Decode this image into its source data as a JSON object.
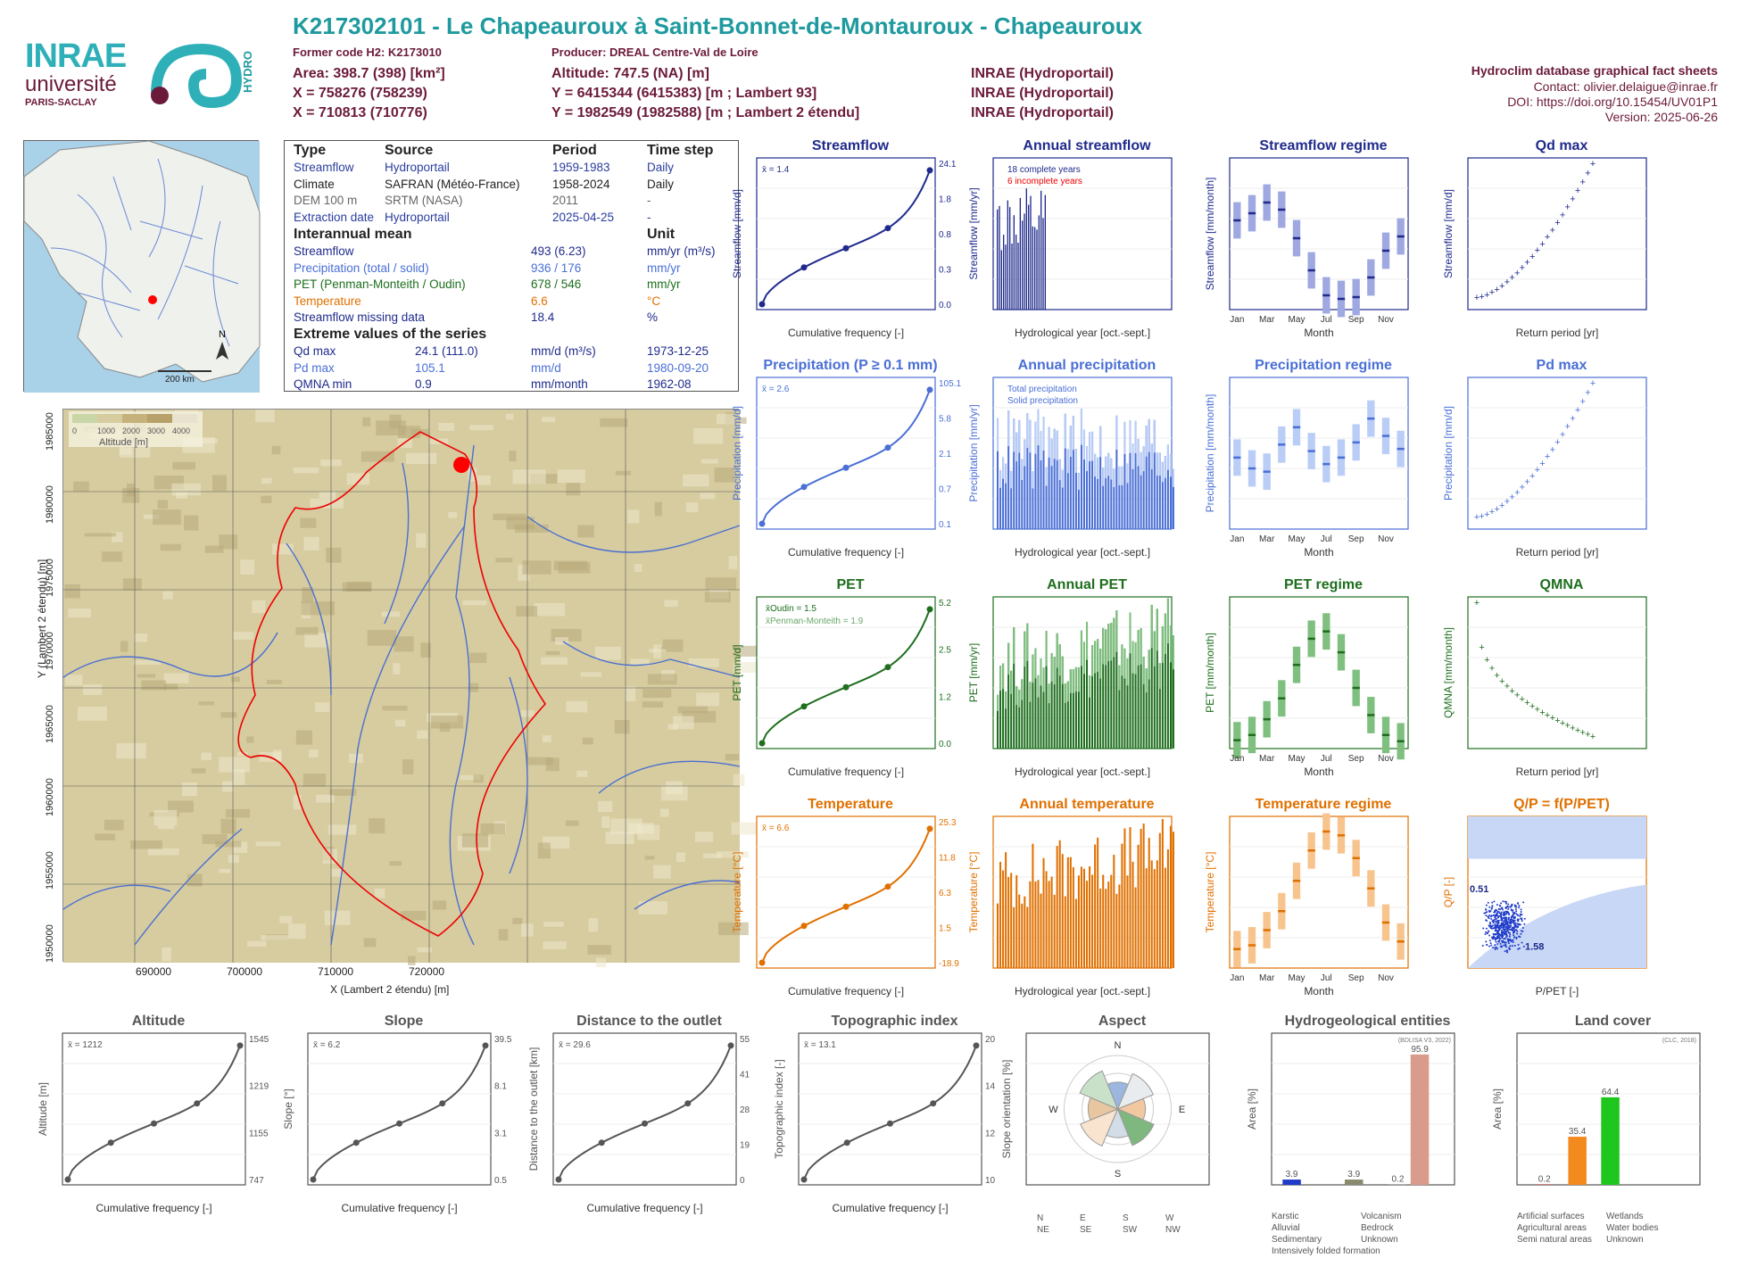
{
  "header": {
    "title": "K217302101 - Le Chapeauroux à Saint-Bonnet-de-Montauroux - Chapeauroux",
    "former_code": "Former code H2: K2173010",
    "producer": "Producer: DREAL Centre-Val de Loire",
    "area": "Area: 398.7 (398) [km²]",
    "altitude": "Altitude: 747.5 (NA) [m]",
    "x93": "X = 758276 (758239)",
    "y93": "Y = 6415344 (6415383) [m ; Lambert 93]",
    "x2": "X = 710813 (710776)",
    "y2": "Y = 1982549 (1982588) [m ; Lambert 2 étendu]",
    "src1": "INRAE (Hydroportail)",
    "src2": "INRAE (Hydroportail)",
    "src3": "INRAE (Hydroportail)",
    "db": "Hydroclim database graphical fact sheets",
    "contact": "Contact: olivier.delaigue@inrae.fr",
    "doi": "DOI: https://doi.org/10.15454/UV01P1",
    "version": "Version: 2025-06-26"
  },
  "logos": {
    "inrae": "INRAE",
    "univ": "université",
    "paris": "PARIS-SACLAY",
    "hydro": "HYDRO"
  },
  "info": {
    "h_type": "Type",
    "h_source": "Source",
    "h_period": "Period",
    "h_step": "Time step",
    "rows": [
      {
        "t": "Streamflow",
        "s": "Hydroportail",
        "p": "1959-1983",
        "ts": "Daily",
        "c": "#2a3d9e"
      },
      {
        "t": "Climate",
        "s": "SAFRAN (Météo-France)",
        "p": "1958-2024",
        "ts": "Daily",
        "c": "#222"
      },
      {
        "t": "DEM 100 m",
        "s": "SRTM (NASA)",
        "p": "2011",
        "ts": "-",
        "c": "#666"
      },
      {
        "t": "Extraction date",
        "s": "Hydroportail",
        "p": "2025-04-25",
        "ts": "-",
        "c": "#2a3d9e"
      }
    ],
    "h_mean": "Interannual mean",
    "h_unit": "Unit",
    "means": [
      {
        "l": "Streamflow",
        "v": "493 (6.23)",
        "u": "mm/yr (m³/s)",
        "c": "#1f2a8c"
      },
      {
        "l": "Precipitation (total / solid)",
        "v": "936 / 176",
        "u": "mm/yr",
        "c": "#4a6fd6"
      },
      {
        "l": "PET (Penman-Monteith / Oudin)",
        "v": "678 / 546",
        "u": "mm/yr",
        "c": "#1e6e1e"
      },
      {
        "l": "Temperature",
        "v": "6.6",
        "u": "°C",
        "c": "#e07000"
      },
      {
        "l": "Streamflow missing data",
        "v": "18.4",
        "u": "%",
        "c": "#1f2a8c"
      }
    ],
    "h_ext": "Extreme values of the series",
    "ext": [
      {
        "l": "Qd max",
        "v": "24.1 (111.0)",
        "u": "mm/d (m³/s)",
        "d": "1973-12-25",
        "c": "#1f2a8c"
      },
      {
        "l": "Pd max",
        "v": "105.1",
        "u": "mm/d",
        "d": "1980-09-20",
        "c": "#4a6fd6"
      },
      {
        "l": "QMNA min",
        "v": "0.9",
        "u": "mm/month",
        "d": "1962-08",
        "c": "#1f2a8c"
      }
    ]
  },
  "map": {
    "north": "N",
    "scale": "200 km"
  },
  "basin": {
    "legend": "Altitude [m]",
    "leg_ticks": [
      "0",
      "1000",
      "2000",
      "3000",
      "4000"
    ],
    "xlabel": "X (Lambert 2 étendu) [m]",
    "ylabel": "Y (Lambert 2 étendu) [m]",
    "xticks": [
      "690000",
      "700000",
      "710000",
      "720000"
    ],
    "yticks": [
      "1985000",
      "1980000",
      "1975000",
      "1970000",
      "1965000",
      "1960000",
      "1955000",
      "1950000"
    ]
  },
  "panels": {
    "streamflow": "Streamflow",
    "annual_streamflow": "Annual streamflow",
    "streamflow_regime": "Streamflow regime",
    "qd_max": "Qd max",
    "precip": "Precipitation (P ≥ 0.1 mm)",
    "annual_precip": "Annual precipitation",
    "precip_regime": "Precipitation regime",
    "pd_max": "Pd max",
    "pet": "PET",
    "annual_pet": "Annual PET",
    "pet_regime": "PET regime",
    "qmna": "QMNA",
    "temp": "Temperature",
    "annual_temp": "Annual temperature",
    "temp_regime": "Temperature regime",
    "qp": "Q/P = f(P/PET)",
    "altitude": "Altitude",
    "slope": "Slope",
    "distance": "Distance to the outlet",
    "topo": "Topographic index",
    "aspect": "Aspect",
    "hydrogeo": "Hydrogeological entities",
    "landcover": "Land cover"
  },
  "chart_data": [
    {
      "type": "line",
      "title": "Streamflow",
      "xlabel": "Cumulative frequency [-]",
      "ylabel": "Streamflow [mm/d]",
      "scale": "log",
      "mean": "x̄ = 1.4",
      "right_ticks": [
        "24.1",
        "1.8",
        "0.8",
        "0.3",
        "0.0"
      ],
      "points": [
        [
          0,
          0.0
        ],
        [
          0.25,
          0.3
        ],
        [
          0.5,
          0.8
        ],
        [
          0.75,
          1.8
        ],
        [
          1,
          24.1
        ]
      ]
    },
    {
      "type": "bar",
      "title": "Annual streamflow",
      "xlabel": "Hydrological year [oct.-sept.]",
      "ylabel": "Streamflow [mm/yr]",
      "legend": [
        "18 complete years",
        "6 incomplete years"
      ],
      "xlim": [
        1958,
        2024
      ],
      "ylim": [
        0,
        1200
      ]
    },
    {
      "type": "bar",
      "title": "Streamflow regime",
      "xlabel": "Month",
      "ylabel": "Streamflow [mm/month]",
      "categories": [
        "Jan",
        "Feb",
        "Mar",
        "Apr",
        "May",
        "Jun",
        "Jul",
        "Aug",
        "Sep",
        "Oct",
        "Nov",
        "Dec"
      ],
      "values": [
        50,
        54,
        60,
        56,
        40,
        22,
        8,
        6,
        7,
        18,
        33,
        41
      ],
      "ylim": [
        0,
        85
      ]
    },
    {
      "type": "scatter",
      "title": "Qd max",
      "xlabel": "Return period [yr]",
      "ylabel": "Streamflow [mm/d]",
      "ylim": [
        0,
        27
      ]
    },
    {
      "type": "line",
      "title": "Precipitation (P ≥ 0.1 mm)",
      "xlabel": "Cumulative frequency [-]",
      "ylabel": "Precipitation [mm/d]",
      "mean": "x̄ = 2.6",
      "right_ticks": [
        "105.1",
        "5.8",
        "2.1",
        "0.7",
        "0.1"
      ]
    },
    {
      "type": "bar",
      "title": "Annual precipitation",
      "xlabel": "Hydrological year [oct.-sept.]",
      "ylabel": "Precipitation [mm/yr]",
      "legend": [
        "Total precipitation",
        "Solid precipitation"
      ],
      "xlim": [
        1958,
        2024
      ],
      "ylim": [
        0,
        1400
      ]
    },
    {
      "type": "bar",
      "title": "Precipitation regime",
      "xlabel": "Month",
      "ylabel": "Precipitation [mm/month]",
      "categories": [
        "Jan",
        "Feb",
        "Mar",
        "Apr",
        "May",
        "Jun",
        "Jul",
        "Aug",
        "Sep",
        "Oct",
        "Nov",
        "Dec"
      ],
      "values": [
        66,
        56,
        53,
        78,
        94,
        72,
        60,
        66,
        80,
        102,
        86,
        74
      ],
      "ylim": [
        0,
        140
      ]
    },
    {
      "type": "scatter",
      "title": "Pd max",
      "xlabel": "Return period [yr]",
      "ylabel": "Precipitation [mm/d]",
      "ylim": [
        20,
        120
      ]
    },
    {
      "type": "line",
      "title": "PET",
      "xlabel": "Cumulative frequency [-]",
      "ylabel": "PET [mm/d]",
      "legend": [
        "x̄Oudin = 1.5",
        "x̄Penman-Monteith = 1.9"
      ],
      "right_ticks": [
        "5.2",
        "2.5",
        "1.2",
        "0.0"
      ]
    },
    {
      "type": "bar",
      "title": "Annual PET",
      "xlabel": "Hydrological year [oct.-sept.]",
      "ylabel": "PET [mm/yr]",
      "xlim": [
        1958,
        2024
      ],
      "ylim": [
        450,
        950
      ]
    },
    {
      "type": "bar",
      "title": "PET regime",
      "xlabel": "Month",
      "ylabel": "PET [mm/month]",
      "categories": [
        "Jan",
        "Feb",
        "Mar",
        "Apr",
        "May",
        "Jun",
        "Jul",
        "Aug",
        "Sep",
        "Oct",
        "Nov",
        "Dec"
      ],
      "values": [
        8,
        13,
        28,
        48,
        80,
        105,
        112,
        92,
        58,
        32,
        13,
        7
      ],
      "ylim": [
        0,
        145
      ]
    },
    {
      "type": "scatter",
      "title": "QMNA",
      "xlabel": "Return period [yr]",
      "ylabel": "QMNA [mm/month]",
      "ylim": [
        0,
        22
      ]
    },
    {
      "type": "line",
      "title": "Temperature",
      "xlabel": "Cumulative frequency [-]",
      "ylabel": "Temperature [°C]",
      "mean": "x̄ = 6.6",
      "right_ticks": [
        "25.3",
        "11.8",
        "6.3",
        "1.5",
        "-18.9"
      ]
    },
    {
      "type": "bar",
      "title": "Annual temperature",
      "xlabel": "Hydrological year [oct.-sept.]",
      "ylabel": "Temperature [°C]",
      "xlim": [
        1958,
        2024
      ],
      "ylim": [
        4.5,
        8.5
      ]
    },
    {
      "type": "bar",
      "title": "Temperature regime",
      "xlabel": "Month",
      "ylabel": "Temperature [°C]",
      "categories": [
        "Jan",
        "Feb",
        "Mar",
        "Apr",
        "May",
        "Jun",
        "Jul",
        "Aug",
        "Sep",
        "Oct",
        "Nov",
        "Dec"
      ],
      "values": [
        -0.5,
        0,
        2,
        4.5,
        8.5,
        12.5,
        15,
        14.5,
        11.5,
        7.5,
        3,
        0.5
      ],
      "ylim": [
        -3,
        17
      ]
    },
    {
      "type": "scatter",
      "title": "Q/P = f(P/PET)",
      "xlabel": "P/PET [-]",
      "ylabel": "Q/P [-]",
      "labels": [
        "0.51",
        "1.58"
      ],
      "xlim": [
        0,
        5
      ],
      "ylim": [
        0,
        1.4
      ]
    },
    {
      "type": "line",
      "title": "Altitude",
      "xlabel": "Cumulative frequency [-]",
      "ylabel": "Altitude [m]",
      "mean": "x̄ = 1212",
      "right_ticks": [
        "1545",
        "1219",
        "1155",
        "747"
      ]
    },
    {
      "type": "line",
      "title": "Slope",
      "xlabel": "Cumulative frequency [-]",
      "ylabel": "Slope [°]",
      "mean": "x̄ = 6.2",
      "right_ticks": [
        "39.5",
        "8.1",
        "3.1",
        "0.5"
      ]
    },
    {
      "type": "line",
      "title": "Distance to the outlet",
      "xlabel": "Cumulative frequency [-]",
      "ylabel": "Distance to the outlet [km]",
      "mean": "x̄ = 29.6",
      "right_ticks": [
        "55",
        "41",
        "28",
        "19",
        "0"
      ]
    },
    {
      "type": "line",
      "title": "Topographic index",
      "xlabel": "Cumulative frequency [-]",
      "ylabel": "Topographic index [-]",
      "mean": "x̄ = 13.1",
      "right_ticks": [
        "20",
        "14",
        "12",
        "10"
      ]
    },
    {
      "type": "pie",
      "title": "Aspect",
      "ylabel": "Slope orientation [%]",
      "legend": [
        "N",
        "E",
        "S",
        "W",
        "NE",
        "SE",
        "SW",
        "NW"
      ]
    },
    {
      "type": "bar",
      "title": "Hydrogeological entities",
      "ylabel": "Area [%]",
      "source": "(BDLISA V3, 2022)",
      "values": [
        3.9,
        3.9,
        0.2,
        95.9
      ],
      "legend": [
        "Karstic",
        "Volcanism",
        "Alluvial",
        "Bedrock",
        "Sedimentary",
        "Unknown",
        "Intensively folded formation"
      ]
    },
    {
      "type": "bar",
      "title": "Land cover",
      "ylabel": "Area [%]",
      "source": "(CLC, 2018)",
      "values": [
        0.2,
        35.4,
        64.4
      ],
      "legend": [
        "Artificial surfaces",
        "Wetlands",
        "Agricultural areas",
        "Water bodies",
        "Semi natural areas",
        "Unknown"
      ]
    }
  ]
}
